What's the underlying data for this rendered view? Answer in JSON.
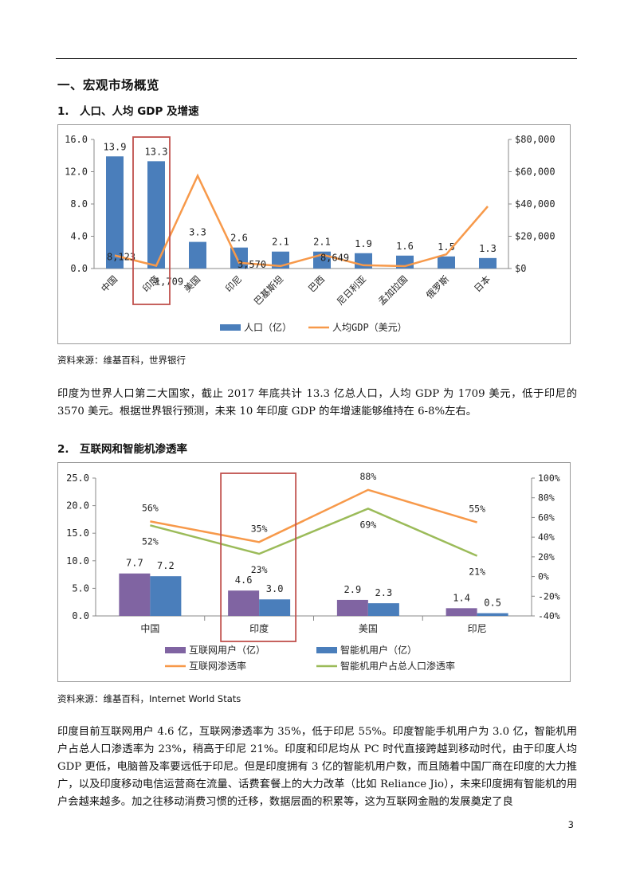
{
  "heading": "一、宏观市场概览",
  "section1": {
    "title": "1.　人口、人均 GDP 及增速",
    "source": "资料来源：维基百科，世界银行",
    "paragraph": "印度为世界人口第二大国家，截止 2017 年底共计 13.3 亿总人口，人均 GDP 为 1709 美元，低于印尼的 3570 美元。根据世界银行预测，未来 10 年印度 GDP 的年增速能够维持在 6-8%左右。"
  },
  "section2": {
    "title": "2.　互联网和智能机渗透率",
    "source": "资料来源：维基百科，Internet World Stats",
    "paragraph": "印度目前互联网用户 4.6 亿，互联网渗透率为 35%，低于印尼 55%。印度智能手机用户为 3.0 亿，智能机用户占总人口渗透率为 23%，稍高于印尼 21%。印度和印尼均从 PC 时代直接跨越到移动时代，由于印度人均 GDP 更低，电脑普及率要远低于印尼。但是印度拥有 3 亿的智能机用户数，而且随着中国厂商在印度的大力推广，以及印度移动电信运营商在流量、话费套餐上的大力改革（比如 Reliance Jio），未来印度拥有智能机的用户会越来越多。加之往移动消费习惯的迁移，数据层面的积累等，这为互联网金融的发展奠定了良"
  },
  "page_number": "3",
  "colors": {
    "bar_blue": "#4a7ebb",
    "line_orange": "#f7994a",
    "bar_purple": "#8064a2",
    "line_green": "#9bbb59",
    "highlight_red": "#c0504d"
  },
  "chart_data": [
    {
      "type": "bar+line",
      "title": "",
      "categories": [
        "中国",
        "印度",
        "美国",
        "印尼",
        "巴基斯坦",
        "巴西",
        "尼日利亚",
        "孟加拉国",
        "俄罗斯",
        "日本"
      ],
      "series": [
        {
          "name": "人口（亿）",
          "type": "bar",
          "axis": "left",
          "values": [
            13.9,
            13.3,
            3.3,
            2.6,
            2.1,
            2.1,
            1.9,
            1.6,
            1.5,
            1.3
          ],
          "labels": [
            "13.9",
            "13.3",
            "3.3",
            "2.6",
            "2.1",
            "2.1",
            "1.9",
            "1.6",
            "1.5",
            "1.3"
          ]
        },
        {
          "name": "人均GDP（美元）",
          "type": "line",
          "axis": "right",
          "values": [
            8123,
            1709,
            57500,
            3570,
            1550,
            8649,
            2000,
            1500,
            8800,
            38500
          ]
        }
      ],
      "line_labels": [
        {
          "index": 0,
          "text": "8,123"
        },
        {
          "index": 1,
          "text": "1,709"
        },
        {
          "index": 3,
          "text": "3,570"
        },
        {
          "index": 5,
          "text": "8,649"
        }
      ],
      "left_axis": {
        "min": 0,
        "max": 16,
        "ticks": [
          "0.0",
          "4.0",
          "8.0",
          "12.0",
          "16.0"
        ]
      },
      "right_axis": {
        "min": 0,
        "max": 80000,
        "ticks": [
          "$0",
          "$20,000",
          "$40,000",
          "$60,000",
          "$80,000"
        ]
      },
      "highlight_index": 1,
      "legend_position": "bottom"
    },
    {
      "type": "bar+line",
      "title": "",
      "categories": [
        "中国",
        "印度",
        "美国",
        "印尼"
      ],
      "series": [
        {
          "name": "互联网用户（亿）",
          "type": "bar",
          "axis": "left",
          "values": [
            7.7,
            4.6,
            2.9,
            1.4
          ],
          "labels": [
            "7.7",
            "4.6",
            "2.9",
            "1.4"
          ]
        },
        {
          "name": "智能机用户（亿）",
          "type": "bar",
          "axis": "left",
          "values": [
            7.2,
            3.0,
            2.3,
            0.5
          ],
          "labels": [
            "7.2",
            "3.0",
            "2.3",
            "0.5"
          ]
        },
        {
          "name": "互联网渗透率",
          "type": "line",
          "axis": "right",
          "values": [
            56,
            35,
            88,
            55
          ],
          "labels": [
            "56%",
            "35%",
            "88%",
            "55%"
          ]
        },
        {
          "name": "智能机用户占总人口渗透率",
          "type": "line",
          "axis": "right",
          "values": [
            52,
            23,
            69,
            21
          ],
          "labels": [
            "52%",
            "23%",
            "69%",
            "21%"
          ]
        }
      ],
      "left_axis": {
        "min": 0,
        "max": 25,
        "ticks": [
          "0.0",
          "5.0",
          "10.0",
          "15.0",
          "20.0",
          "25.0"
        ]
      },
      "right_axis": {
        "min": -40,
        "max": 100,
        "ticks": [
          "-40%",
          "-20%",
          "0%",
          "20%",
          "40%",
          "60%",
          "80%",
          "100%"
        ]
      },
      "highlight_index": 1,
      "legend_position": "bottom"
    }
  ]
}
